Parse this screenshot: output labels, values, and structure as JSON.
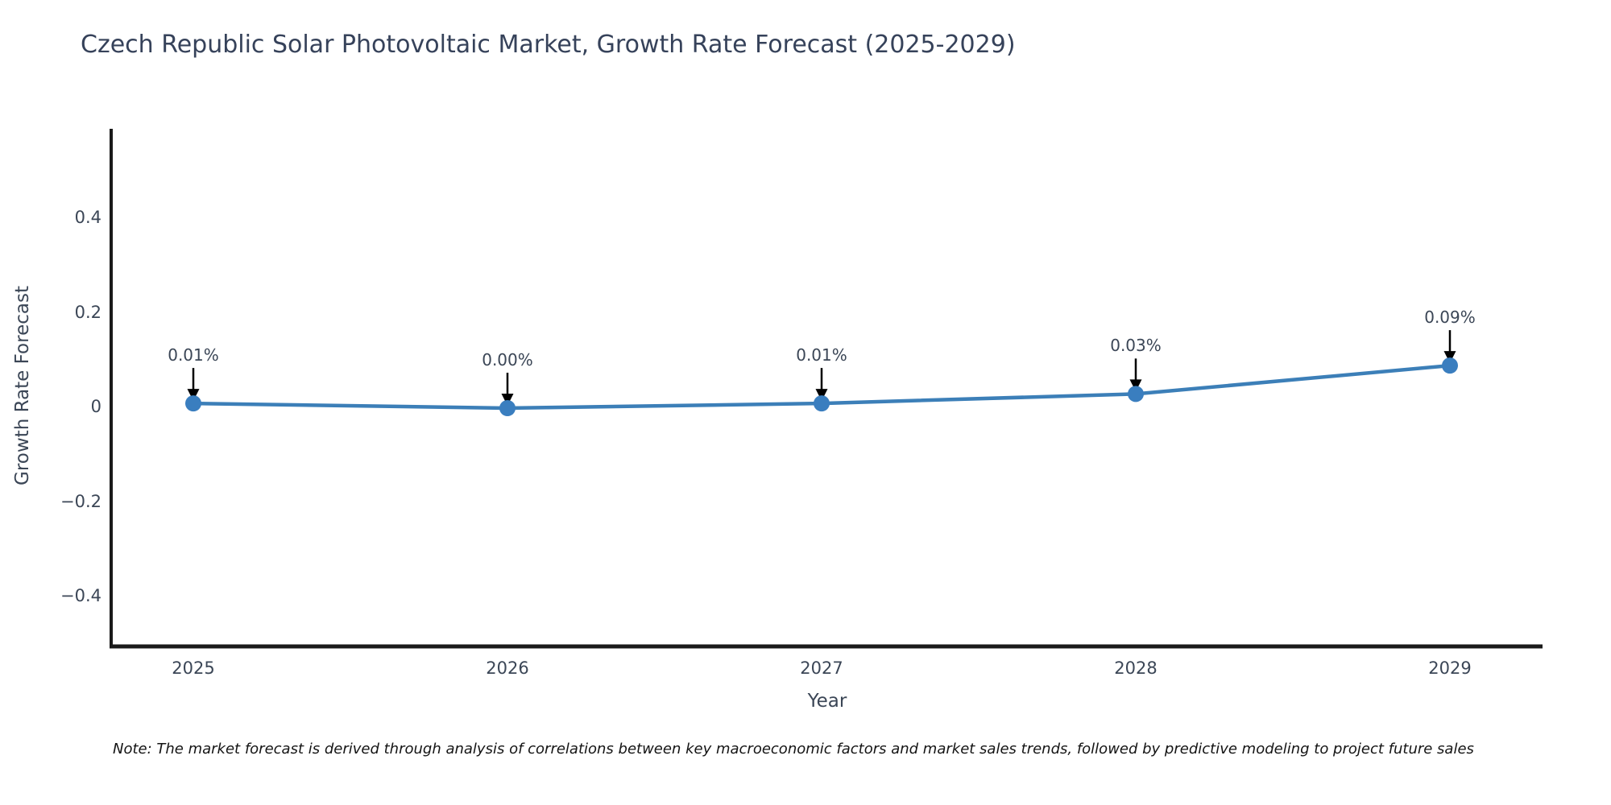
{
  "title": "Czech Republic Solar Photovoltaic Market, Growth Rate Forecast (2025-2029)",
  "chart_data": {
    "type": "line",
    "x": [
      "2025",
      "2026",
      "2027",
      "2028",
      "2029"
    ],
    "series": [
      {
        "name": "Growth Rate Forecast",
        "values": [
          0.01,
          0.0,
          0.01,
          0.03,
          0.09
        ]
      }
    ],
    "point_labels": [
      "0.01%",
      "0.00%",
      "0.01%",
      "0.03%",
      "0.09%"
    ],
    "title": "Czech Republic Solar Photovoltaic Market, Growth Rate Forecast (2025-2029)",
    "xlabel": "Year",
    "ylabel": "Growth Rate Forecast",
    "ylim": [
      -0.51,
      0.59
    ],
    "yticks": [
      0.4,
      0.2,
      0,
      -0.2,
      -0.4
    ],
    "ytick_labels": [
      "0.4",
      "0.2",
      "0",
      "−0.2",
      "−0.4"
    ],
    "grid": false,
    "legend": "none",
    "line_color": "#3c7fb8",
    "marker_color": "#3a7ebf",
    "axis_color": "#1a1a1a",
    "text_color": "#3b4656",
    "arrow_color": "#000000"
  },
  "footnote": "Note: The market forecast is derived through analysis of correlations between key macroeconomic factors and market sales trends, followed by predictive modeling to project future sales"
}
